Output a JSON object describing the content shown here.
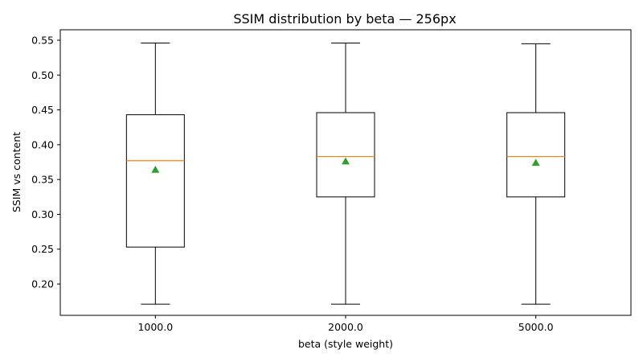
{
  "chart_data": {
    "type": "box",
    "title": "SSIM distribution by beta — 256px",
    "xlabel": "beta (style weight)",
    "ylabel": "SSIM vs content",
    "categories": [
      "1000.0",
      "2000.0",
      "5000.0"
    ],
    "ylim": [
      0.155,
      0.565
    ],
    "yticks": [
      0.2,
      0.25,
      0.3,
      0.35,
      0.4,
      0.45,
      0.5,
      0.55
    ],
    "ytick_labels": [
      "0.20",
      "0.25",
      "0.30",
      "0.35",
      "0.40",
      "0.45",
      "0.50",
      "0.55"
    ],
    "grid": false,
    "boxes": [
      {
        "category": "1000.0",
        "whisker_low": 0.171,
        "q1": 0.253,
        "median": 0.377,
        "q3": 0.443,
        "whisker_high": 0.546,
        "mean": 0.364
      },
      {
        "category": "2000.0",
        "whisker_low": 0.171,
        "q1": 0.325,
        "median": 0.383,
        "q3": 0.446,
        "whisker_high": 0.546,
        "mean": 0.376
      },
      {
        "category": "5000.0",
        "whisker_low": 0.171,
        "q1": 0.325,
        "median": 0.383,
        "q3": 0.446,
        "whisker_high": 0.545,
        "mean": 0.374
      }
    ],
    "colors": {
      "box": "#000000",
      "median": "#ff7f0e",
      "mean": "#2ca02c"
    }
  }
}
